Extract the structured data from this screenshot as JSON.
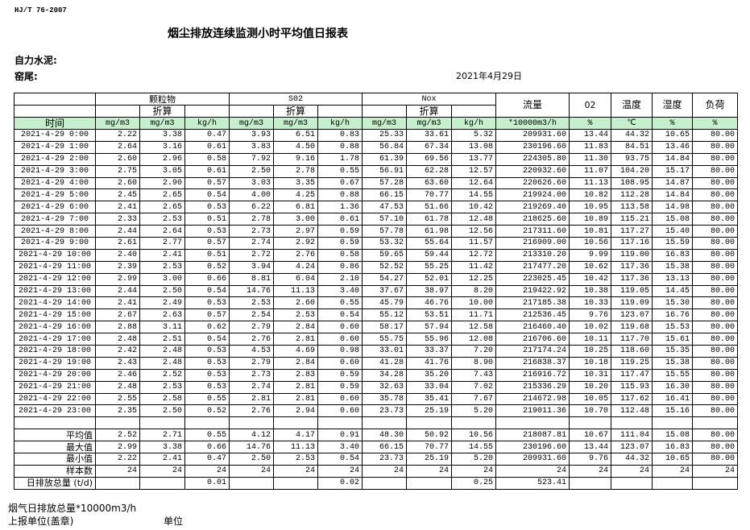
{
  "header": {
    "standard": "HJ/T  76-2007",
    "title": "烟尘排放连续监测小时平均值日报表",
    "company": "自力水泥:",
    "kiln": "窑尾:",
    "date": "2021年4月29日"
  },
  "columns": {
    "groups": [
      "颗粒物",
      "S02",
      "Nox"
    ],
    "converted": "折算",
    "time": "时间",
    "flow": "流量",
    "o2": "02",
    "temp": "温度",
    "humidity": "湿度",
    "load": "负荷",
    "units": [
      "mg/m3",
      "mg/m3",
      "kg/h",
      "mg/m3",
      "mg/m3",
      "kg/h",
      "mg/m3",
      "mg/m3",
      "kg/h",
      "*10000m3/h",
      "%",
      "℃",
      "%",
      "%"
    ]
  },
  "header_color": "#c6efce",
  "rows": [
    [
      "2021-4-29 0:00",
      "2.22",
      "3.38",
      "0.47",
      "3.93",
      "6.51",
      "0.83",
      "25.33",
      "33.61",
      "5.32",
      "209931.60",
      "13.44",
      "44.32",
      "10.65",
      "80.00"
    ],
    [
      "2021-4-29 1:00",
      "2.64",
      "3.16",
      "0.61",
      "3.83",
      "4.50",
      "0.88",
      "56.84",
      "67.34",
      "13.08",
      "230196.60",
      "11.83",
      "84.51",
      "13.46",
      "80.00"
    ],
    [
      "2021-4-29 2:00",
      "2.60",
      "2.96",
      "0.58",
      "7.92",
      "9.16",
      "1.78",
      "61.39",
      "69.56",
      "13.77",
      "224305.80",
      "11.30",
      "93.75",
      "14.84",
      "80.00"
    ],
    [
      "2021-4-29 3:00",
      "2.75",
      "3.05",
      "0.61",
      "2.50",
      "2.78",
      "0.55",
      "56.91",
      "62.28",
      "12.57",
      "220932.60",
      "11.07",
      "104.20",
      "15.17",
      "80.00"
    ],
    [
      "2021-4-29 4:00",
      "2.60",
      "2.90",
      "0.57",
      "3.03",
      "3.35",
      "0.67",
      "57.28",
      "63.60",
      "12.64",
      "220626.60",
      "11.13",
      "108.95",
      "14.87",
      "80.00"
    ],
    [
      "2021-4-29 5:00",
      "2.45",
      "2.65",
      "0.54",
      "4.00",
      "4.25",
      "0.88",
      "66.15",
      "70.77",
      "14.55",
      "219924.00",
      "10.82",
      "112.28",
      "14.84",
      "80.00"
    ],
    [
      "2021-4-29 6:00",
      "2.41",
      "2.65",
      "0.53",
      "6.22",
      "6.81",
      "1.36",
      "47.53",
      "51.66",
      "10.42",
      "219269.40",
      "10.95",
      "113.58",
      "14.98",
      "80.00"
    ],
    [
      "2021-4-29 7:00",
      "2.33",
      "2.53",
      "0.51",
      "2.78",
      "3.00",
      "0.61",
      "57.10",
      "61.78",
      "12.48",
      "218625.60",
      "10.89",
      "115.21",
      "15.08",
      "80.00"
    ],
    [
      "2021-4-29 8:00",
      "2.44",
      "2.64",
      "0.53",
      "2.73",
      "2.97",
      "0.59",
      "57.78",
      "61.98",
      "12.56",
      "217311.60",
      "10.81",
      "117.27",
      "15.40",
      "80.00"
    ],
    [
      "2021-4-29 9:00",
      "2.61",
      "2.77",
      "0.57",
      "2.74",
      "2.92",
      "0.59",
      "53.32",
      "55.64",
      "11.57",
      "216909.00",
      "10.56",
      "117.16",
      "15.59",
      "80.00"
    ],
    [
      "2021-4-29 10:00",
      "2.40",
      "2.41",
      "0.51",
      "2.72",
      "2.76",
      "0.58",
      "59.65",
      "59.44",
      "12.72",
      "213310.20",
      "9.99",
      "119.00",
      "16.83",
      "80.00"
    ],
    [
      "2021-4-29 11:00",
      "2.39",
      "2.53",
      "0.52",
      "3.94",
      "4.24",
      "0.86",
      "52.52",
      "55.25",
      "11.42",
      "217477.20",
      "10.62",
      "117.36",
      "15.38",
      "80.00"
    ],
    [
      "2021-4-29 12:00",
      "2.99",
      "3.00",
      "0.66",
      "8.81",
      "6.04",
      "2.10",
      "54.27",
      "52.01",
      "12.25",
      "223025.45",
      "10.42",
      "117.36",
      "13.13",
      "80.00"
    ],
    [
      "2021-4-29 13:00",
      "2.44",
      "2.50",
      "0.54",
      "14.76",
      "11.13",
      "3.40",
      "37.67",
      "38.97",
      "8.20",
      "219422.92",
      "10.38",
      "119.05",
      "14.45",
      "80.00"
    ],
    [
      "2021-4-29 14:00",
      "2.41",
      "2.49",
      "0.53",
      "2.53",
      "2.60",
      "0.55",
      "45.79",
      "46.76",
      "10.00",
      "217185.38",
      "10.33",
      "119.09",
      "15.30",
      "80.00"
    ],
    [
      "2021-4-29 15:00",
      "2.67",
      "2.63",
      "0.57",
      "2.54",
      "2.53",
      "0.54",
      "55.12",
      "53.51",
      "11.71",
      "212536.45",
      "9.76",
      "123.07",
      "16.76",
      "80.00"
    ],
    [
      "2021-4-29 16:00",
      "2.88",
      "3.11",
      "0.62",
      "2.79",
      "2.84",
      "0.60",
      "58.17",
      "57.94",
      "12.58",
      "216460.40",
      "10.02",
      "119.68",
      "15.53",
      "80.00"
    ],
    [
      "2021-4-29 17:00",
      "2.48",
      "2.51",
      "0.54",
      "2.76",
      "2.81",
      "0.60",
      "55.75",
      "55.96",
      "12.08",
      "216706.60",
      "10.11",
      "117.70",
      "15.61",
      "80.00"
    ],
    [
      "2021-4-29 18:00",
      "2.42",
      "2.48",
      "0.53",
      "4.53",
      "4.69",
      "0.98",
      "33.01",
      "33.37",
      "7.20",
      "217174.24",
      "10.25",
      "118.60",
      "15.35",
      "80.00"
    ],
    [
      "2021-4-29 19:00",
      "2.43",
      "2.48",
      "0.53",
      "2.79",
      "2.84",
      "0.60",
      "41.28",
      "41.76",
      "8.90",
      "216838.37",
      "10.18",
      "119.25",
      "15.38",
      "80.00"
    ],
    [
      "2021-4-29 20:00",
      "2.46",
      "2.52",
      "0.53",
      "2.73",
      "2.83",
      "0.59",
      "34.28",
      "35.20",
      "7.43",
      "216916.72",
      "10.31",
      "117.47",
      "15.55",
      "80.00"
    ],
    [
      "2021-4-29 21:00",
      "2.48",
      "2.53",
      "0.53",
      "2.74",
      "2.81",
      "0.59",
      "32.63",
      "33.04",
      "7.02",
      "215336.29",
      "10.20",
      "115.93",
      "16.30",
      "80.00"
    ],
    [
      "2021-4-29 22:00",
      "2.55",
      "2.58",
      "0.55",
      "2.81",
      "2.81",
      "0.60",
      "35.78",
      "35.41",
      "7.67",
      "214672.98",
      "10.05",
      "117.62",
      "16.41",
      "80.00"
    ],
    [
      "2021-4-29 23:00",
      "2.35",
      "2.50",
      "0.52",
      "2.76",
      "2.94",
      "0.60",
      "23.73",
      "25.19",
      "5.20",
      "219011.36",
      "10.70",
      "112.48",
      "15.16",
      "80.00"
    ]
  ],
  "summary": [
    [
      "平均值",
      "2.52",
      "2.71",
      "0.55",
      "4.12",
      "4.17",
      "0.91",
      "48.30",
      "50.92",
      "10.56",
      "218087.81",
      "10.67",
      "111.04",
      "15.08",
      "80.00"
    ],
    [
      "最大值",
      "2.99",
      "3.38",
      "0.66",
      "14.76",
      "11.13",
      "3.40",
      "66.15",
      "70.77",
      "14.55",
      "230196.60",
      "13.44",
      "123.07",
      "16.83",
      "80.00"
    ],
    [
      "最小值",
      "2.22",
      "2.41",
      "0.47",
      "2.50",
      "2.53",
      "0.54",
      "23.73",
      "25.19",
      "5.20",
      "209931.60",
      "9.76",
      "44.32",
      "10.65",
      "80.00"
    ],
    [
      "样本数",
      "24",
      "24",
      "24",
      "24",
      "24",
      "24",
      "24",
      "24",
      "24",
      "24",
      "24",
      "24",
      "24",
      "24"
    ],
    [
      "日排放总量 (t/d)",
      "",
      "",
      "0.01",
      "",
      "",
      "0.02",
      "",
      "",
      "0.25",
      "523.41",
      "",
      "",
      "",
      ""
    ]
  ],
  "footer": {
    "flue_gas_total": "烟气日排放总量*10000m3/h",
    "reporting_unit": "上报单位(盖章)",
    "unit": "单位"
  }
}
